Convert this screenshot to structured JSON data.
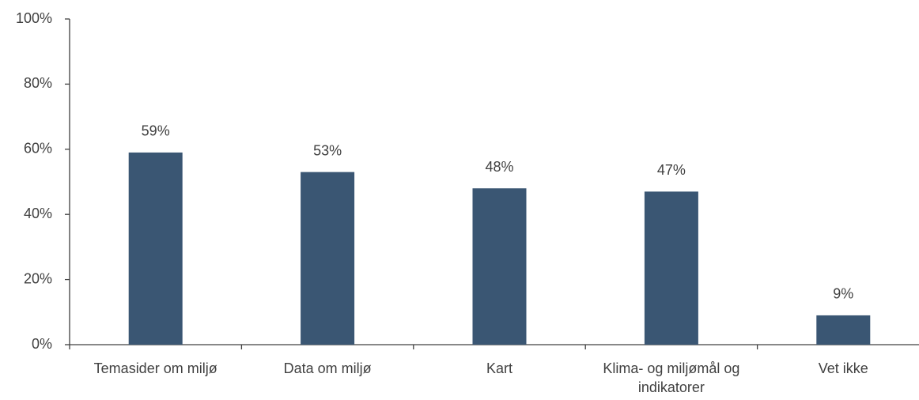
{
  "chart_data": {
    "type": "bar",
    "categories": [
      "Temasider om miljø",
      "Data om miljø",
      "Kart",
      "Klima- og miljømål og indikatorer",
      "Vet ikke"
    ],
    "values": [
      59,
      53,
      48,
      47,
      9
    ],
    "value_labels": [
      "59%",
      "53%",
      "48%",
      "47%",
      "9%"
    ],
    "color": "#3a5673",
    "ylim": [
      0,
      100
    ],
    "yticks": [
      {
        "value": 0,
        "label": "0%"
      },
      {
        "value": 20,
        "label": "20%"
      },
      {
        "value": 40,
        "label": "40%"
      },
      {
        "value": 60,
        "label": "60%"
      },
      {
        "value": 80,
        "label": "80%"
      },
      {
        "value": 100,
        "label": "100%"
      }
    ],
    "grid": false
  }
}
